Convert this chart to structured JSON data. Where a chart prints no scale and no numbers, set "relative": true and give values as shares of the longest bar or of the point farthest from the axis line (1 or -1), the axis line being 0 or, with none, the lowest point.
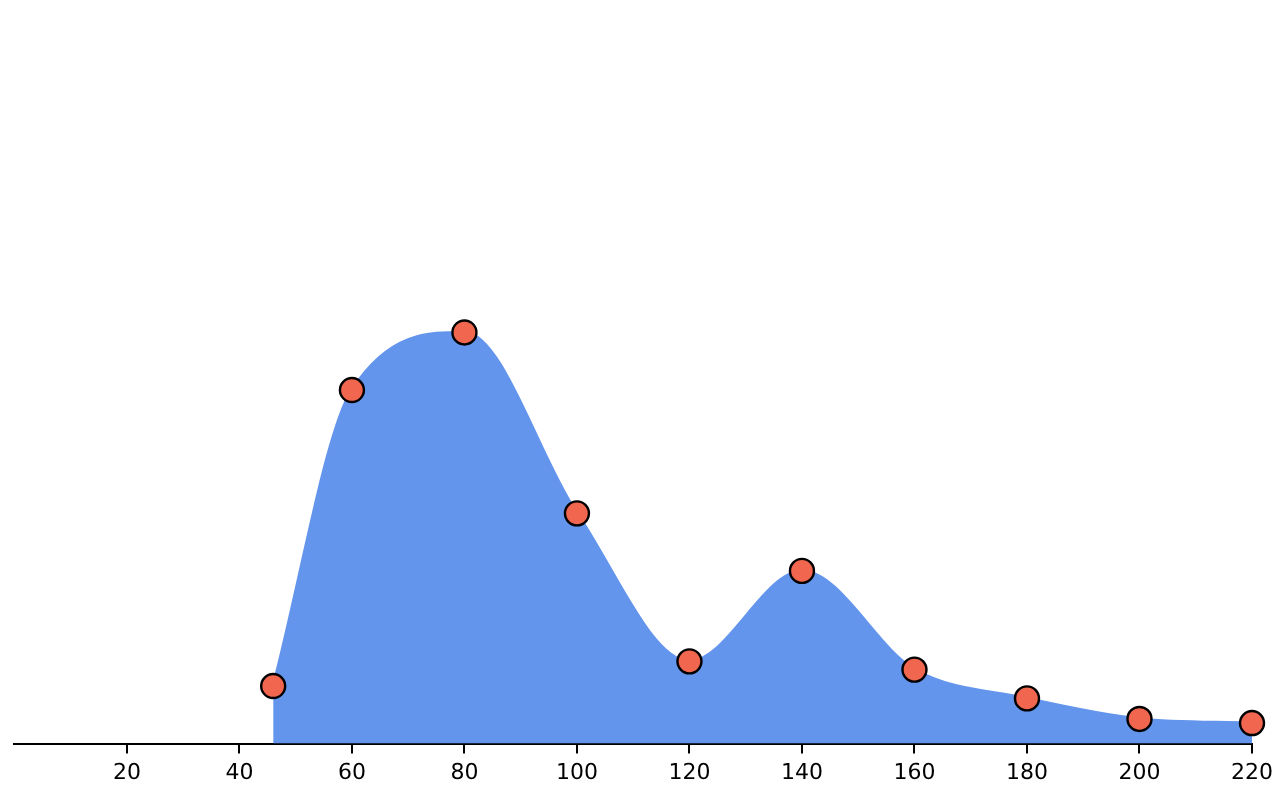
{
  "chart_data": {
    "type": "area",
    "relative": true,
    "x": [
      46,
      60,
      80,
      100,
      120,
      140,
      160,
      180,
      200,
      220
    ],
    "series": [
      {
        "color": "#6495ed",
        "values": [
          0.14,
          0.86,
          1,
          0.56,
          0.2,
          0.42,
          0.18,
          0.11,
          0.06,
          0.05
        ]
      }
    ],
    "xlim": [
      0,
      220
    ],
    "xticks": [
      20,
      40,
      60,
      80,
      100,
      120,
      140,
      160,
      180,
      200,
      220
    ],
    "marker": "circle",
    "grid": false,
    "legend": false
  }
}
